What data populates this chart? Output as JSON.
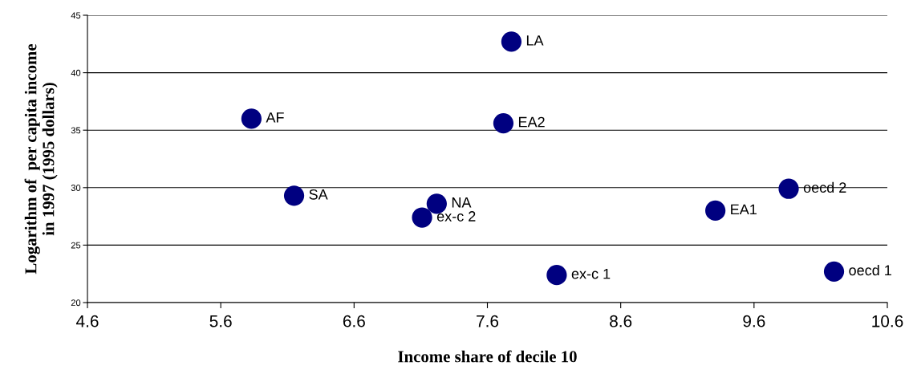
{
  "chart_data": {
    "type": "scatter",
    "xlabel": "Income share of decile 10",
    "ylabel": "Logarithm of  per capita income\nin 1997 (1995 dollars)",
    "x": [
      5.83,
      6.15,
      7.22,
      7.11,
      7.78,
      7.72,
      8.12,
      9.31,
      9.86,
      10.2
    ],
    "series": [
      {
        "color": "#000080",
        "values": [
          36.0,
          29.3,
          28.6,
          27.4,
          42.7,
          35.6,
          22.4,
          28.0,
          29.9,
          22.7
        ]
      }
    ],
    "annotations": [
      {
        "text": "AF",
        "x": 5.83,
        "y": 36.0
      },
      {
        "text": "SA",
        "x": 6.15,
        "y": 29.3
      },
      {
        "text": "NA",
        "x": 7.22,
        "y": 28.6
      },
      {
        "text": "ex-c 2",
        "x": 7.11,
        "y": 27.4
      },
      {
        "text": "LA",
        "x": 7.78,
        "y": 42.7
      },
      {
        "text": "EA2",
        "x": 7.72,
        "y": 35.6
      },
      {
        "text": "ex-c 1",
        "x": 8.12,
        "y": 22.4
      },
      {
        "text": "EA1",
        "x": 9.31,
        "y": 28.0
      },
      {
        "text": "oecd 2",
        "x": 9.86,
        "y": 29.9
      },
      {
        "text": "oecd 1",
        "x": 10.2,
        "y": 22.7
      }
    ],
    "xlim": [
      4.6,
      10.6
    ],
    "xticks": [
      4.6,
      5.6,
      6.6,
      7.6,
      8.6,
      9.6,
      10.6
    ],
    "ylim": [
      20,
      45
    ],
    "yticks": [
      20,
      25,
      30,
      35,
      40,
      45
    ],
    "grid": "y",
    "marker": "circle"
  }
}
